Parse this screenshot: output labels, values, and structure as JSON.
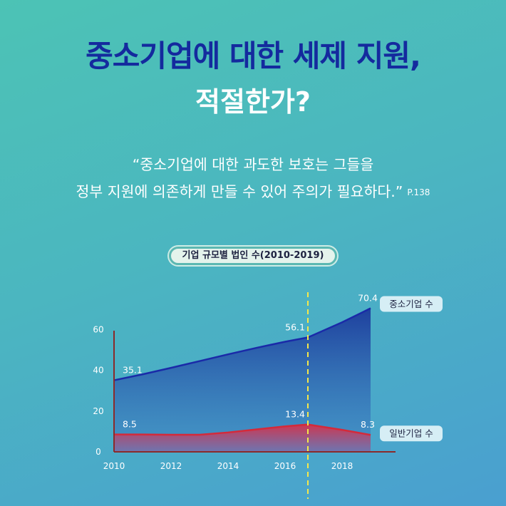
{
  "header": {
    "title": "중소기업에 대한 세제 지원,",
    "subtitle": "적절한가?",
    "quote_line1": "“중소기업에 대한 과도한 보호는 그들을",
    "quote_line2": "정부 지원에 의존하게 만들 수 있어 주의가 필요하다.”",
    "page_ref": "P.138"
  },
  "colors": {
    "title": "#142a9e",
    "sme_line": "#1a2aa8",
    "general_line": "#d42a3a",
    "marker_line": "#f5e84a",
    "axis": "#8b2a2a"
  },
  "chart_data": {
    "type": "area",
    "title": "기업 규모별 법인 수(2010-2019)",
    "x_ticks": [
      2010,
      2012,
      2014,
      2016,
      2018
    ],
    "y_ticks": [
      0,
      20,
      40,
      60
    ],
    "xlim": [
      2010,
      2019
    ],
    "ylim": [
      0,
      65
    ],
    "marker_x": 2016.8,
    "series": [
      {
        "name": "중소기업 수",
        "color": "#1a2aa8",
        "points": [
          [
            2010,
            35.1
          ],
          [
            2011,
            38.0
          ],
          [
            2012,
            41.2
          ],
          [
            2013,
            44.5
          ],
          [
            2014,
            47.8
          ],
          [
            2015,
            51.0
          ],
          [
            2016,
            54.0
          ],
          [
            2016.8,
            56.1
          ],
          [
            2018,
            63.5
          ],
          [
            2019,
            70.4
          ]
        ],
        "labels": [
          {
            "x": 2010,
            "y": 35.1,
            "text": "35.1"
          },
          {
            "x": 2016.8,
            "y": 56.1,
            "text": "56.1"
          },
          {
            "x": 2019,
            "y": 70.4,
            "text": "70.4"
          }
        ]
      },
      {
        "name": "일반기업 수",
        "color": "#d42a3a",
        "points": [
          [
            2010,
            8.5
          ],
          [
            2011,
            8.5
          ],
          [
            2012,
            8.4
          ],
          [
            2013,
            8.4
          ],
          [
            2014,
            9.5
          ],
          [
            2015,
            11.0
          ],
          [
            2016,
            12.5
          ],
          [
            2016.8,
            13.4
          ],
          [
            2018,
            10.8
          ],
          [
            2019,
            8.3
          ]
        ],
        "labels": [
          {
            "x": 2010,
            "y": 8.5,
            "text": "8.5"
          },
          {
            "x": 2016.8,
            "y": 13.4,
            "text": "13.4"
          },
          {
            "x": 2019,
            "y": 8.3,
            "text": "8.3"
          }
        ]
      }
    ]
  }
}
